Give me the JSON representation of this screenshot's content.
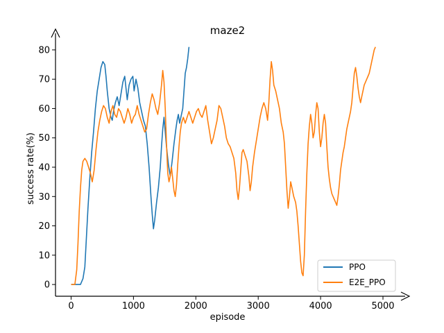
{
  "chart_data": {
    "type": "line",
    "title": "maze2",
    "xlabel": "episode",
    "ylabel": "success rate(%)",
    "xlim": [
      -250,
      5200
    ],
    "ylim": [
      -4,
      84
    ],
    "xticks": [
      0,
      1000,
      2000,
      3000,
      4000,
      5000
    ],
    "yticks": [
      0,
      10,
      20,
      30,
      40,
      50,
      60,
      70,
      80
    ],
    "grid": false,
    "legend_position": "lower-right",
    "series": [
      {
        "name": "PPO",
        "color": "#1f77b4",
        "points": [
          [
            0,
            0
          ],
          [
            80,
            0
          ],
          [
            150,
            0
          ],
          [
            190,
            2
          ],
          [
            220,
            6
          ],
          [
            240,
            14
          ],
          [
            270,
            26
          ],
          [
            300,
            36
          ],
          [
            330,
            45
          ],
          [
            360,
            52
          ],
          [
            390,
            60
          ],
          [
            420,
            66
          ],
          [
            450,
            70
          ],
          [
            480,
            74
          ],
          [
            510,
            76
          ],
          [
            540,
            75
          ],
          [
            560,
            71
          ],
          [
            580,
            66
          ],
          [
            610,
            60
          ],
          [
            640,
            57
          ],
          [
            660,
            56
          ],
          [
            680,
            59
          ],
          [
            710,
            62
          ],
          [
            740,
            64
          ],
          [
            770,
            61
          ],
          [
            800,
            65
          ],
          [
            830,
            69
          ],
          [
            860,
            71
          ],
          [
            880,
            67
          ],
          [
            900,
            63
          ],
          [
            930,
            68
          ],
          [
            960,
            70
          ],
          [
            990,
            71
          ],
          [
            1010,
            66
          ],
          [
            1040,
            70
          ],
          [
            1070,
            67
          ],
          [
            1100,
            62
          ],
          [
            1130,
            59
          ],
          [
            1160,
            56
          ],
          [
            1190,
            54
          ],
          [
            1220,
            48
          ],
          [
            1250,
            40
          ],
          [
            1280,
            30
          ],
          [
            1300,
            24
          ],
          [
            1320,
            19
          ],
          [
            1340,
            22
          ],
          [
            1370,
            28
          ],
          [
            1400,
            33
          ],
          [
            1430,
            40
          ],
          [
            1450,
            47
          ],
          [
            1470,
            53
          ],
          [
            1490,
            57
          ],
          [
            1510,
            52
          ],
          [
            1530,
            47
          ],
          [
            1560,
            41
          ],
          [
            1590,
            37
          ],
          [
            1620,
            42
          ],
          [
            1650,
            48
          ],
          [
            1680,
            53
          ],
          [
            1700,
            56
          ],
          [
            1720,
            58
          ],
          [
            1740,
            55
          ],
          [
            1760,
            57
          ],
          [
            1790,
            60
          ],
          [
            1810,
            66
          ],
          [
            1830,
            72
          ],
          [
            1850,
            74
          ],
          [
            1870,
            77
          ],
          [
            1890,
            81
          ]
        ]
      },
      {
        "name": "E2E_PPO",
        "color": "#ff7f0e",
        "points": [
          [
            0,
            0
          ],
          [
            60,
            0
          ],
          [
            90,
            5
          ],
          [
            110,
            14
          ],
          [
            130,
            25
          ],
          [
            150,
            33
          ],
          [
            170,
            39
          ],
          [
            190,
            42
          ],
          [
            220,
            43
          ],
          [
            250,
            42
          ],
          [
            280,
            40
          ],
          [
            310,
            38
          ],
          [
            340,
            35
          ],
          [
            370,
            39
          ],
          [
            400,
            46
          ],
          [
            430,
            52
          ],
          [
            460,
            56
          ],
          [
            490,
            59
          ],
          [
            520,
            61
          ],
          [
            550,
            60
          ],
          [
            580,
            57
          ],
          [
            610,
            55
          ],
          [
            640,
            59
          ],
          [
            670,
            61
          ],
          [
            700,
            58
          ],
          [
            730,
            57
          ],
          [
            760,
            60
          ],
          [
            790,
            59
          ],
          [
            820,
            57
          ],
          [
            850,
            55
          ],
          [
            880,
            57
          ],
          [
            910,
            60
          ],
          [
            940,
            58
          ],
          [
            970,
            55
          ],
          [
            1000,
            57
          ],
          [
            1030,
            58
          ],
          [
            1060,
            61
          ],
          [
            1090,
            58
          ],
          [
            1120,
            56
          ],
          [
            1150,
            54
          ],
          [
            1180,
            52
          ],
          [
            1210,
            53
          ],
          [
            1240,
            58
          ],
          [
            1270,
            62
          ],
          [
            1300,
            65
          ],
          [
            1330,
            63
          ],
          [
            1360,
            60
          ],
          [
            1390,
            58
          ],
          [
            1420,
            62
          ],
          [
            1450,
            68
          ],
          [
            1470,
            73
          ],
          [
            1490,
            69
          ],
          [
            1510,
            60
          ],
          [
            1530,
            48
          ],
          [
            1550,
            38
          ],
          [
            1570,
            35
          ],
          [
            1590,
            37
          ],
          [
            1610,
            40
          ],
          [
            1630,
            36
          ],
          [
            1650,
            32
          ],
          [
            1670,
            30
          ],
          [
            1690,
            34
          ],
          [
            1710,
            41
          ],
          [
            1730,
            47
          ],
          [
            1750,
            52
          ],
          [
            1770,
            55
          ],
          [
            1800,
            57
          ],
          [
            1830,
            55
          ],
          [
            1860,
            57
          ],
          [
            1890,
            59
          ],
          [
            1920,
            57
          ],
          [
            1950,
            55
          ],
          [
            1980,
            57
          ],
          [
            2010,
            59
          ],
          [
            2040,
            60
          ],
          [
            2070,
            58
          ],
          [
            2100,
            57
          ],
          [
            2130,
            59
          ],
          [
            2160,
            61
          ],
          [
            2190,
            56
          ],
          [
            2220,
            52
          ],
          [
            2250,
            48
          ],
          [
            2280,
            50
          ],
          [
            2310,
            53
          ],
          [
            2340,
            56
          ],
          [
            2370,
            61
          ],
          [
            2400,
            60
          ],
          [
            2430,
            57
          ],
          [
            2460,
            54
          ],
          [
            2490,
            50
          ],
          [
            2520,
            48
          ],
          [
            2550,
            47
          ],
          [
            2580,
            45
          ],
          [
            2610,
            43
          ],
          [
            2640,
            38
          ],
          [
            2660,
            32
          ],
          [
            2680,
            29
          ],
          [
            2700,
            33
          ],
          [
            2720,
            39
          ],
          [
            2740,
            45
          ],
          [
            2760,
            46
          ],
          [
            2790,
            44
          ],
          [
            2820,
            42
          ],
          [
            2850,
            37
          ],
          [
            2870,
            32
          ],
          [
            2890,
            35
          ],
          [
            2910,
            40
          ],
          [
            2940,
            45
          ],
          [
            2970,
            49
          ],
          [
            3000,
            53
          ],
          [
            3030,
            57
          ],
          [
            3060,
            60
          ],
          [
            3090,
            62
          ],
          [
            3120,
            60
          ],
          [
            3150,
            56
          ],
          [
            3170,
            62
          ],
          [
            3190,
            70
          ],
          [
            3210,
            76
          ],
          [
            3230,
            73
          ],
          [
            3250,
            68
          ],
          [
            3280,
            66
          ],
          [
            3310,
            63
          ],
          [
            3340,
            60
          ],
          [
            3370,
            55
          ],
          [
            3400,
            52
          ],
          [
            3420,
            48
          ],
          [
            3440,
            40
          ],
          [
            3460,
            32
          ],
          [
            3480,
            26
          ],
          [
            3500,
            30
          ],
          [
            3520,
            35
          ],
          [
            3540,
            33
          ],
          [
            3570,
            30
          ],
          [
            3600,
            28
          ],
          [
            3620,
            25
          ],
          [
            3640,
            20
          ],
          [
            3660,
            14
          ],
          [
            3680,
            8
          ],
          [
            3700,
            4
          ],
          [
            3720,
            3
          ],
          [
            3740,
            10
          ],
          [
            3760,
            25
          ],
          [
            3780,
            38
          ],
          [
            3800,
            48
          ],
          [
            3820,
            54
          ],
          [
            3840,
            58
          ],
          [
            3860,
            55
          ],
          [
            3880,
            50
          ],
          [
            3900,
            52
          ],
          [
            3920,
            58
          ],
          [
            3940,
            62
          ],
          [
            3960,
            60
          ],
          [
            3980,
            52
          ],
          [
            4000,
            47
          ],
          [
            4020,
            50
          ],
          [
            4040,
            55
          ],
          [
            4060,
            58
          ],
          [
            4080,
            55
          ],
          [
            4100,
            47
          ],
          [
            4120,
            40
          ],
          [
            4140,
            36
          ],
          [
            4160,
            33
          ],
          [
            4180,
            31
          ],
          [
            4200,
            30
          ],
          [
            4220,
            29
          ],
          [
            4240,
            28
          ],
          [
            4260,
            27
          ],
          [
            4280,
            30
          ],
          [
            4300,
            34
          ],
          [
            4320,
            39
          ],
          [
            4340,
            42
          ],
          [
            4360,
            45
          ],
          [
            4380,
            47
          ],
          [
            4400,
            50
          ],
          [
            4420,
            53
          ],
          [
            4440,
            55
          ],
          [
            4460,
            57
          ],
          [
            4480,
            59
          ],
          [
            4500,
            62
          ],
          [
            4520,
            67
          ],
          [
            4540,
            72
          ],
          [
            4560,
            74
          ],
          [
            4580,
            71
          ],
          [
            4600,
            67
          ],
          [
            4620,
            64
          ],
          [
            4640,
            62
          ],
          [
            4660,
            64
          ],
          [
            4680,
            66
          ],
          [
            4700,
            68
          ],
          [
            4720,
            69
          ],
          [
            4740,
            70
          ],
          [
            4760,
            71
          ],
          [
            4780,
            72
          ],
          [
            4800,
            74
          ],
          [
            4820,
            76
          ],
          [
            4840,
            78
          ],
          [
            4860,
            80
          ],
          [
            4880,
            81
          ]
        ]
      }
    ]
  }
}
